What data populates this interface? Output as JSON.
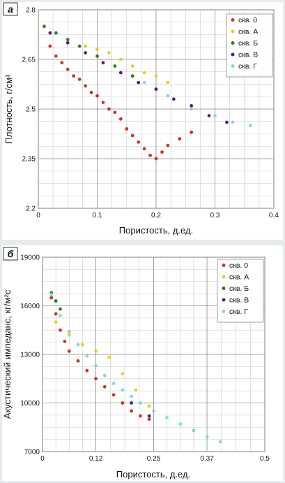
{
  "chart_data": [
    {
      "type": "scatter",
      "panel_label": "а",
      "xlabel": "Пористость, д.ед.",
      "ylabel": "Плотность, г/см³",
      "xlim": [
        0,
        0.4
      ],
      "ylim": [
        2.2,
        2.8
      ],
      "x_ticks": [
        0,
        0.1,
        0.2,
        0.3,
        0.4
      ],
      "x_tick_labels": [
        "0",
        "0.1",
        "0.2",
        "0.3",
        "0.4"
      ],
      "y_ticks": [
        2.2,
        2.35,
        2.5,
        2.65,
        2.8
      ],
      "y_tick_labels": [
        "2.2",
        "2.35",
        "2.5",
        "2.65",
        "2.8"
      ],
      "grid": true,
      "legend_position": "top-right",
      "series": [
        {
          "name": "скв. 0",
          "color": "#d1321e",
          "x": [
            0.02,
            0.03,
            0.04,
            0.05,
            0.06,
            0.07,
            0.08,
            0.09,
            0.1,
            0.11,
            0.12,
            0.13,
            0.14,
            0.15,
            0.16,
            0.17,
            0.18,
            0.19,
            0.2,
            0.21,
            0.22,
            0.24,
            0.26
          ],
          "y": [
            2.69,
            2.66,
            2.64,
            2.62,
            2.6,
            2.59,
            2.57,
            2.55,
            2.54,
            2.52,
            2.5,
            2.49,
            2.47,
            2.44,
            2.42,
            2.4,
            2.38,
            2.36,
            2.35,
            2.37,
            2.39,
            2.41,
            2.43
          ]
        },
        {
          "name": "скв. А",
          "color": "#e3d21c",
          "x": [
            0.02,
            0.05,
            0.08,
            0.1,
            0.12,
            0.14,
            0.16,
            0.18,
            0.2,
            0.22
          ],
          "y": [
            2.73,
            2.71,
            2.69,
            2.68,
            2.67,
            2.65,
            2.63,
            2.61,
            2.6,
            2.58
          ]
        },
        {
          "name": "скв. Б",
          "color": "#2f7d1e",
          "x": [
            0.01,
            0.03,
            0.05,
            0.07,
            0.1,
            0.13,
            0.16,
            0.2
          ],
          "y": [
            2.75,
            2.73,
            2.71,
            2.69,
            2.66,
            2.63,
            2.6,
            2.56
          ]
        },
        {
          "name": "скв. В",
          "color": "#5b1a8a",
          "x": [
            0.02,
            0.05,
            0.08,
            0.11,
            0.14,
            0.17,
            0.2,
            0.23,
            0.26,
            0.29,
            0.32
          ],
          "y": [
            2.73,
            2.7,
            2.67,
            2.64,
            2.61,
            2.58,
            2.56,
            2.53,
            2.51,
            2.48,
            2.46
          ]
        },
        {
          "name": "скв. Г",
          "color": "#86d6d8",
          "x": [
            0.18,
            0.22,
            0.26,
            0.3,
            0.33,
            0.36
          ],
          "y": [
            2.58,
            2.54,
            2.5,
            2.48,
            2.46,
            2.45
          ]
        }
      ]
    },
    {
      "type": "scatter",
      "panel_label": "б",
      "xlabel": "Пористость, д.ед.",
      "ylabel": "Акустический импеданс, кг/м²с",
      "xlim": [
        0,
        0.5
      ],
      "ylim": [
        7000,
        19000
      ],
      "x_ticks": [
        0,
        0.12,
        0.25,
        0.37,
        0.5
      ],
      "x_tick_labels": [
        "0",
        "0.12",
        "0.25",
        "0.37",
        "0.5"
      ],
      "y_ticks": [
        7000,
        10000,
        13000,
        16000,
        19000
      ],
      "y_tick_labels": [
        "7000",
        "10000",
        "13000",
        "16000",
        "19000"
      ],
      "grid": true,
      "legend_position": "top-right",
      "series": [
        {
          "name": "скв. 0",
          "color": "#d1321e",
          "x": [
            0.02,
            0.03,
            0.04,
            0.05,
            0.06,
            0.08,
            0.1,
            0.12,
            0.14,
            0.16,
            0.18,
            0.2,
            0.22,
            0.24
          ],
          "y": [
            16500,
            15500,
            14500,
            13800,
            13200,
            12600,
            12000,
            11500,
            11000,
            10500,
            10000,
            9500,
            9200,
            9000
          ]
        },
        {
          "name": "скв. А",
          "color": "#e3d21c",
          "x": [
            0.03,
            0.06,
            0.09,
            0.12,
            0.15,
            0.18,
            0.21,
            0.24
          ],
          "y": [
            15000,
            14200,
            13600,
            13200,
            12800,
            11800,
            10800,
            9800
          ]
        },
        {
          "name": "скв. Б",
          "color": "#2f7d1e",
          "x": [
            0.02,
            0.03,
            0.04
          ],
          "y": [
            16800,
            16300,
            15800
          ]
        },
        {
          "name": "скв. В",
          "color": "#5b1a8a",
          "x": [
            0.2,
            0.24
          ],
          "y": [
            10000,
            9200
          ]
        },
        {
          "name": "скв. Г",
          "color": "#86d6d8",
          "x": [
            0.02,
            0.04,
            0.06,
            0.08,
            0.1,
            0.12,
            0.14,
            0.16,
            0.18,
            0.2,
            0.22,
            0.25,
            0.28,
            0.31,
            0.34,
            0.37,
            0.4
          ],
          "y": [
            16700,
            15400,
            14400,
            13600,
            12900,
            12300,
            11700,
            11200,
            10800,
            10400,
            10000,
            9500,
            9100,
            8700,
            8300,
            7900,
            7600
          ]
        }
      ]
    }
  ]
}
